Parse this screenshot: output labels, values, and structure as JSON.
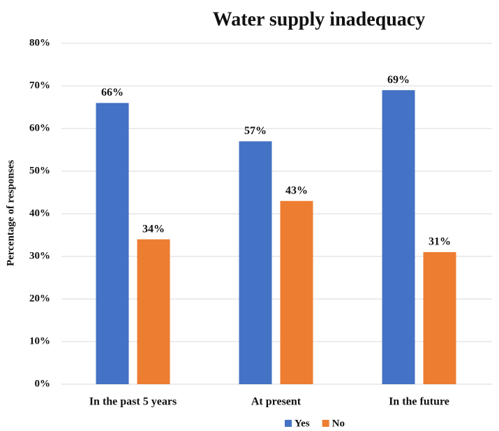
{
  "chart_data": {
    "type": "bar",
    "title": "Water supply inadequacy",
    "y_label": "Percentage of responses",
    "categories": [
      "In the past 5 years",
      "At present",
      "In the future"
    ],
    "series": [
      {
        "name": "Yes",
        "color": "#4472c4",
        "values": [
          66,
          57,
          69
        ],
        "value_labels": [
          "66%",
          "57%",
          "69%"
        ]
      },
      {
        "name": "No",
        "color": "#ed7d31",
        "values": [
          34,
          43,
          31
        ],
        "value_labels": [
          "34%",
          "43%",
          "31%"
        ]
      }
    ],
    "ylim": [
      0,
      80
    ],
    "yticks": [
      {
        "value": 0,
        "label": "0%"
      },
      {
        "value": 10,
        "label": "10%"
      },
      {
        "value": 20,
        "label": "20%"
      },
      {
        "value": 30,
        "label": "30%"
      },
      {
        "value": 40,
        "label": "40%"
      },
      {
        "value": 50,
        "label": "50%"
      },
      {
        "value": 60,
        "label": "60%"
      },
      {
        "value": 70,
        "label": "70%"
      },
      {
        "value": 80,
        "label": "80%"
      }
    ],
    "grid": true,
    "legend": "bottom"
  }
}
